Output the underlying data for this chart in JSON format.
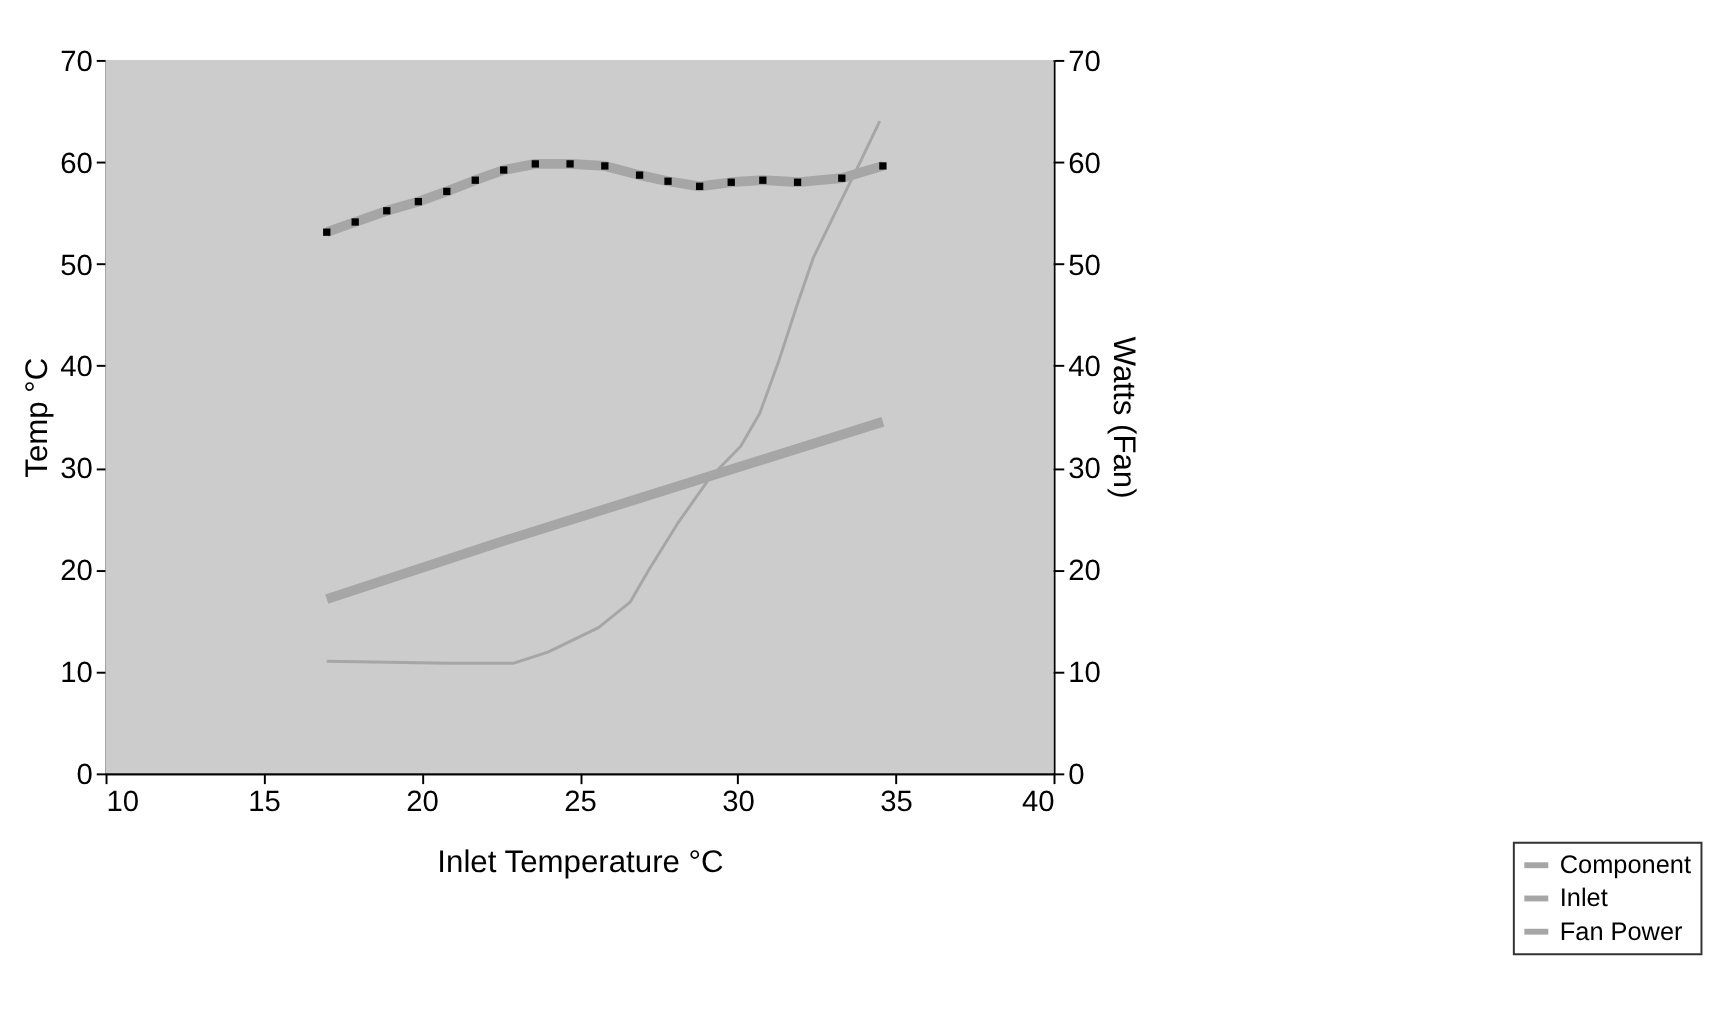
{
  "chart_data": {
    "type": "line",
    "xlabel": "Inlet Temperature °C",
    "ylabel": "Temp °C",
    "y2label": "Watts (Fan)",
    "xlim": [
      10,
      40
    ],
    "xticks": [
      10,
      15,
      20,
      25,
      30,
      35,
      40
    ],
    "ylim": [
      0,
      70
    ],
    "yticks": [
      0,
      10,
      20,
      30,
      40,
      50,
      60,
      70
    ],
    "y2lim": [
      0,
      70
    ],
    "y2ticks": [
      0,
      10,
      20,
      30,
      40,
      50,
      60,
      70
    ],
    "grid": "y",
    "legend": "bottom right",
    "line_style": "solid",
    "series": [
      {
        "name": "Component",
        "color": "#a6a6a6",
        "marker": "square",
        "x": [
          17,
          17.9,
          18.9,
          19.9,
          20.8,
          21.7,
          22.6,
          23.6,
          24.7,
          25.8,
          26.9,
          27.8,
          28.8,
          29.8,
          30.8,
          31.9,
          33.3,
          34.6
        ],
        "values": [
          53.1,
          54.1,
          55.2,
          56.1,
          57.1,
          58.2,
          59.2,
          59.8,
          59.8,
          59.6,
          58.7,
          58.1,
          57.6,
          58.0,
          58.2,
          58.0,
          58.4,
          59.6
        ]
      },
      {
        "name": "Inlet",
        "color": "#a6a6a6",
        "x": [
          17,
          22.7,
          34.6
        ],
        "values": [
          17.1,
          22.9,
          34.5
        ]
      },
      {
        "name": "Fan Power",
        "color": "#a6a6a6",
        "axis": "y2",
        "x": [
          17,
          20.9,
          22.9,
          24,
          25.6,
          26.6,
          27.2,
          28.1,
          29.1,
          30.1,
          30.7,
          31.3,
          31.9,
          32.4,
          33.2,
          33.9,
          34.5
        ],
        "values": [
          11.0,
          10.8,
          10.8,
          11.9,
          14.3,
          16.8,
          20.0,
          24.5,
          28.9,
          32.1,
          35.3,
          40.4,
          46.1,
          50.6,
          55.7,
          60.1,
          64.0
        ]
      }
    ]
  }
}
